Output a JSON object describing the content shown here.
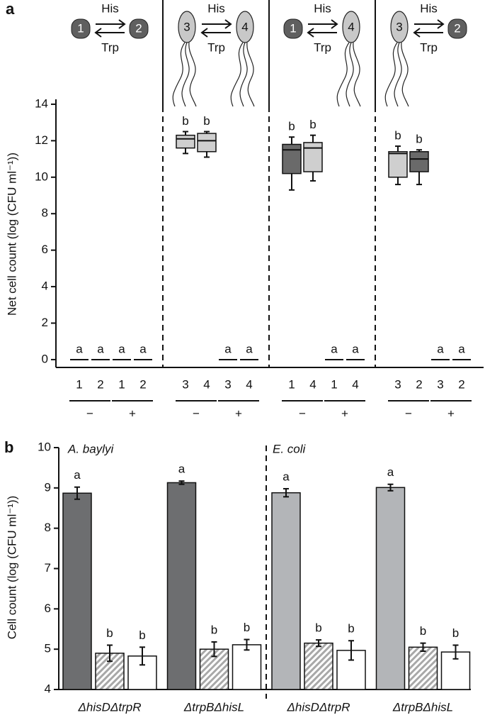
{
  "chart_data": [
    {
      "type": "box",
      "panel": "a",
      "ylabel": "Net cell count (log (CFU ml⁻¹))",
      "ylim": [
        -0.43,
        14.27
      ],
      "yticks": [
        0,
        2,
        4,
        6,
        8,
        10,
        12,
        14
      ],
      "groups": [
        {
          "icons": [
            {
              "label": "1",
              "color": "#5f5f5f",
              "flagella": false
            },
            {
              "label": "2",
              "color": "#5f5f5f",
              "flagella": false
            }
          ],
          "top_text": "His",
          "bottom_text": "Trp",
          "conditions": [
            "−",
            "+"
          ],
          "boxes": [
            {
              "label": "1",
              "letter": "a",
              "value": 0
            },
            {
              "label": "2",
              "letter": "a",
              "value": 0
            },
            {
              "label": "1",
              "letter": "a",
              "value": 0
            },
            {
              "label": "2",
              "letter": "a",
              "value": 0
            }
          ]
        },
        {
          "icons": [
            {
              "label": "3",
              "color": "#c8c8c8",
              "flagella": true
            },
            {
              "label": "4",
              "color": "#c8c8c8",
              "flagella": true
            }
          ],
          "top_text": "His",
          "bottom_text": "Trp",
          "conditions": [
            "−",
            "+"
          ],
          "boxes": [
            {
              "label": "3",
              "letter": "b",
              "stats": [
                11.3,
                11.6,
                12.1,
                12.3,
                12.5
              ],
              "color": "#cfcfcf"
            },
            {
              "label": "4",
              "letter": "b",
              "stats": [
                11.1,
                11.4,
                12.0,
                12.4,
                12.5
              ],
              "color": "#cfcfcf"
            },
            {
              "label": "3",
              "letter": "a",
              "value": 0
            },
            {
              "label": "4",
              "letter": "a",
              "value": 0
            }
          ]
        },
        {
          "icons": [
            {
              "label": "1",
              "color": "#5f5f5f",
              "flagella": false
            },
            {
              "label": "4",
              "color": "#c8c8c8",
              "flagella": true
            }
          ],
          "top_text": "His",
          "bottom_text": "Trp",
          "conditions": [
            "−",
            "+"
          ],
          "boxes": [
            {
              "label": "1",
              "letter": "b",
              "stats": [
                9.3,
                10.2,
                11.5,
                11.8,
                12.2
              ],
              "color": "#6a6a6a"
            },
            {
              "label": "4",
              "letter": "b",
              "stats": [
                9.8,
                10.3,
                11.6,
                11.9,
                12.3
              ],
              "color": "#cfcfcf"
            },
            {
              "label": "1",
              "letter": "a",
              "value": 0
            },
            {
              "label": "4",
              "letter": "a",
              "value": 0
            }
          ]
        },
        {
          "icons": [
            {
              "label": "3",
              "color": "#c8c8c8",
              "flagella": true
            },
            {
              "label": "2",
              "color": "#5f5f5f",
              "flagella": false
            }
          ],
          "top_text": "His",
          "bottom_text": "Trp",
          "conditions": [
            "−",
            "+"
          ],
          "boxes": [
            {
              "label": "3",
              "letter": "b",
              "stats": [
                9.6,
                10.0,
                11.3,
                11.4,
                11.7
              ],
              "color": "#cfcfcf"
            },
            {
              "label": "2",
              "letter": "b",
              "stats": [
                9.6,
                10.3,
                11.0,
                11.4,
                11.5
              ],
              "color": "#6a6a6a"
            },
            {
              "label": "3",
              "letter": "a",
              "value": 0
            },
            {
              "label": "2",
              "letter": "a",
              "value": 0
            }
          ]
        }
      ]
    },
    {
      "type": "bar",
      "panel": "b",
      "ylabel": "Cell count (log (CFU ml⁻¹))",
      "ylim": [
        4,
        10
      ],
      "yticks": [
        4,
        5,
        6,
        7,
        8,
        9,
        10
      ],
      "sections": [
        "A. baylyi",
        "E. coli"
      ],
      "categories": [
        "ΔhisDΔtrpR",
        "ΔtrpBΔhisL",
        "ΔhisDΔtrpR",
        "ΔtrpBΔhisL"
      ],
      "series": [
        {
          "colors": [
            "#6d6e70",
            "#6d6e70",
            "#b3b5b8",
            "#b3b5b8"
          ],
          "hatch": false,
          "values": [
            8.87,
            9.13,
            8.88,
            9.01
          ],
          "errors": [
            0.15,
            0.04,
            0.1,
            0.08
          ],
          "letters": [
            "a",
            "a",
            "a",
            "a"
          ]
        },
        {
          "colors": [
            "#c4c4c4",
            "#c4c4c4",
            "#c4c4c4",
            "#c4c4c4"
          ],
          "hatch": true,
          "values": [
            4.9,
            5.0,
            5.15,
            5.05
          ],
          "errors": [
            0.2,
            0.18,
            0.08,
            0.1
          ],
          "letters": [
            "b",
            "b",
            "b",
            "b"
          ]
        },
        {
          "colors": [
            "#ffffff",
            "#ffffff",
            "#ffffff",
            "#ffffff"
          ],
          "hatch": false,
          "values": [
            4.83,
            5.11,
            4.97,
            4.93
          ],
          "errors": [
            0.22,
            0.13,
            0.24,
            0.17
          ],
          "letters": [
            "b",
            "b",
            "b",
            "b"
          ]
        }
      ]
    }
  ]
}
